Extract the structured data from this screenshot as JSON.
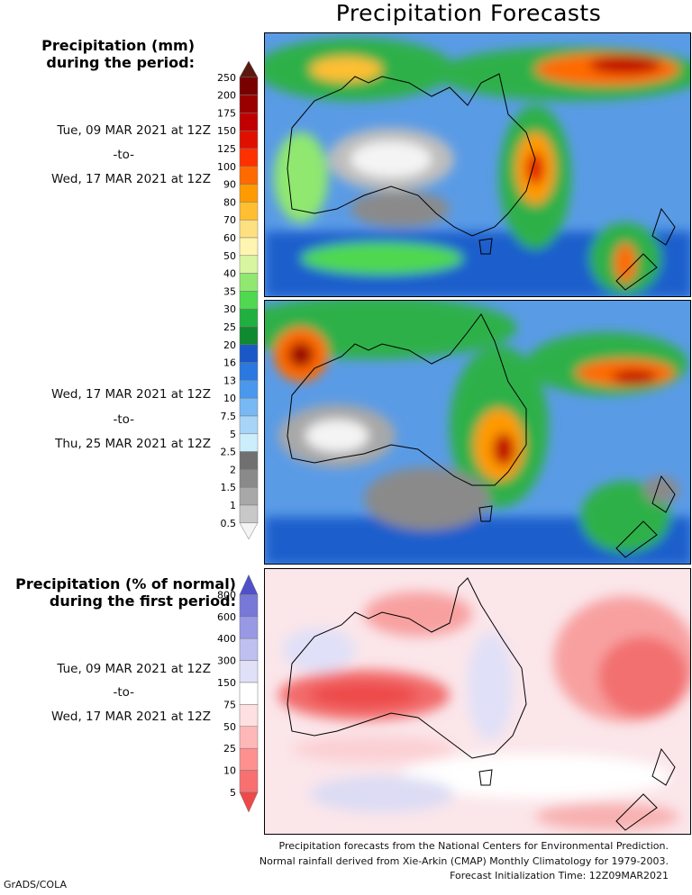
{
  "title": "Precipitation Forecasts",
  "panel1": {
    "heading_line1": "Precipitation (mm)",
    "heading_line2": "during the period:",
    "start": "Tue, 09 MAR 2021 at 12Z",
    "to": "-to-",
    "end": "Wed, 17 MAR 2021 at 12Z"
  },
  "panel2": {
    "start": "Wed, 17 MAR 2021 at 12Z",
    "to": "-to-",
    "end": "Thu, 25 MAR 2021 at 12Z"
  },
  "panel3": {
    "heading_line1": "Precipitation (% of normal)",
    "heading_line2": "during the first period:",
    "start": "Tue, 09 MAR 2021 at 12Z",
    "to": "-to-",
    "end": "Wed, 17 MAR 2021 at 12Z"
  },
  "mm_scale": {
    "labels": [
      "250",
      "200",
      "175",
      "150",
      "125",
      "100",
      "90",
      "80",
      "70",
      "60",
      "50",
      "40",
      "35",
      "30",
      "25",
      "20",
      "16",
      "13",
      "10",
      "7.5",
      "5",
      "2.5",
      "2",
      "1.5",
      "1",
      "0.5"
    ],
    "colors": [
      "#5a1a10",
      "#7a0000",
      "#9a0000",
      "#c00000",
      "#e01000",
      "#ff3000",
      "#ff6a00",
      "#ff9a00",
      "#ffbf30",
      "#ffe080",
      "#fff5b0",
      "#d8f5a0",
      "#90e870",
      "#50d850",
      "#20b040",
      "#108a30",
      "#1a58c8",
      "#2a78e0",
      "#4a98ee",
      "#78b8f4",
      "#a8d4f8",
      "#cceefc",
      "#707070",
      "#8a8a8a",
      "#a8a8a8",
      "#c8c8c8",
      "#f4f4f4"
    ]
  },
  "pct_scale": {
    "labels": [
      "800",
      "600",
      "400",
      "300",
      "150",
      "75",
      "50",
      "25",
      "10",
      "5"
    ],
    "colors": [
      "#5050c8",
      "#7878d8",
      "#9898e4",
      "#c0c0f0",
      "#e0e0f8",
      "#ffffff",
      "#ffe0e0",
      "#ffb8b8",
      "#ff9090",
      "#f87070",
      "#ee4848"
    ]
  },
  "footer": {
    "line1": "Precipitation forecasts from the National Centers for Environmental Prediction.",
    "line2": "Normal rainfall derived from Xie-Arkin (CMAP) Monthly Climatology for 1979-2003.",
    "line3": "Forecast Initialization Time: 12Z09MAR2021"
  },
  "credit": "GrADS/COLA"
}
